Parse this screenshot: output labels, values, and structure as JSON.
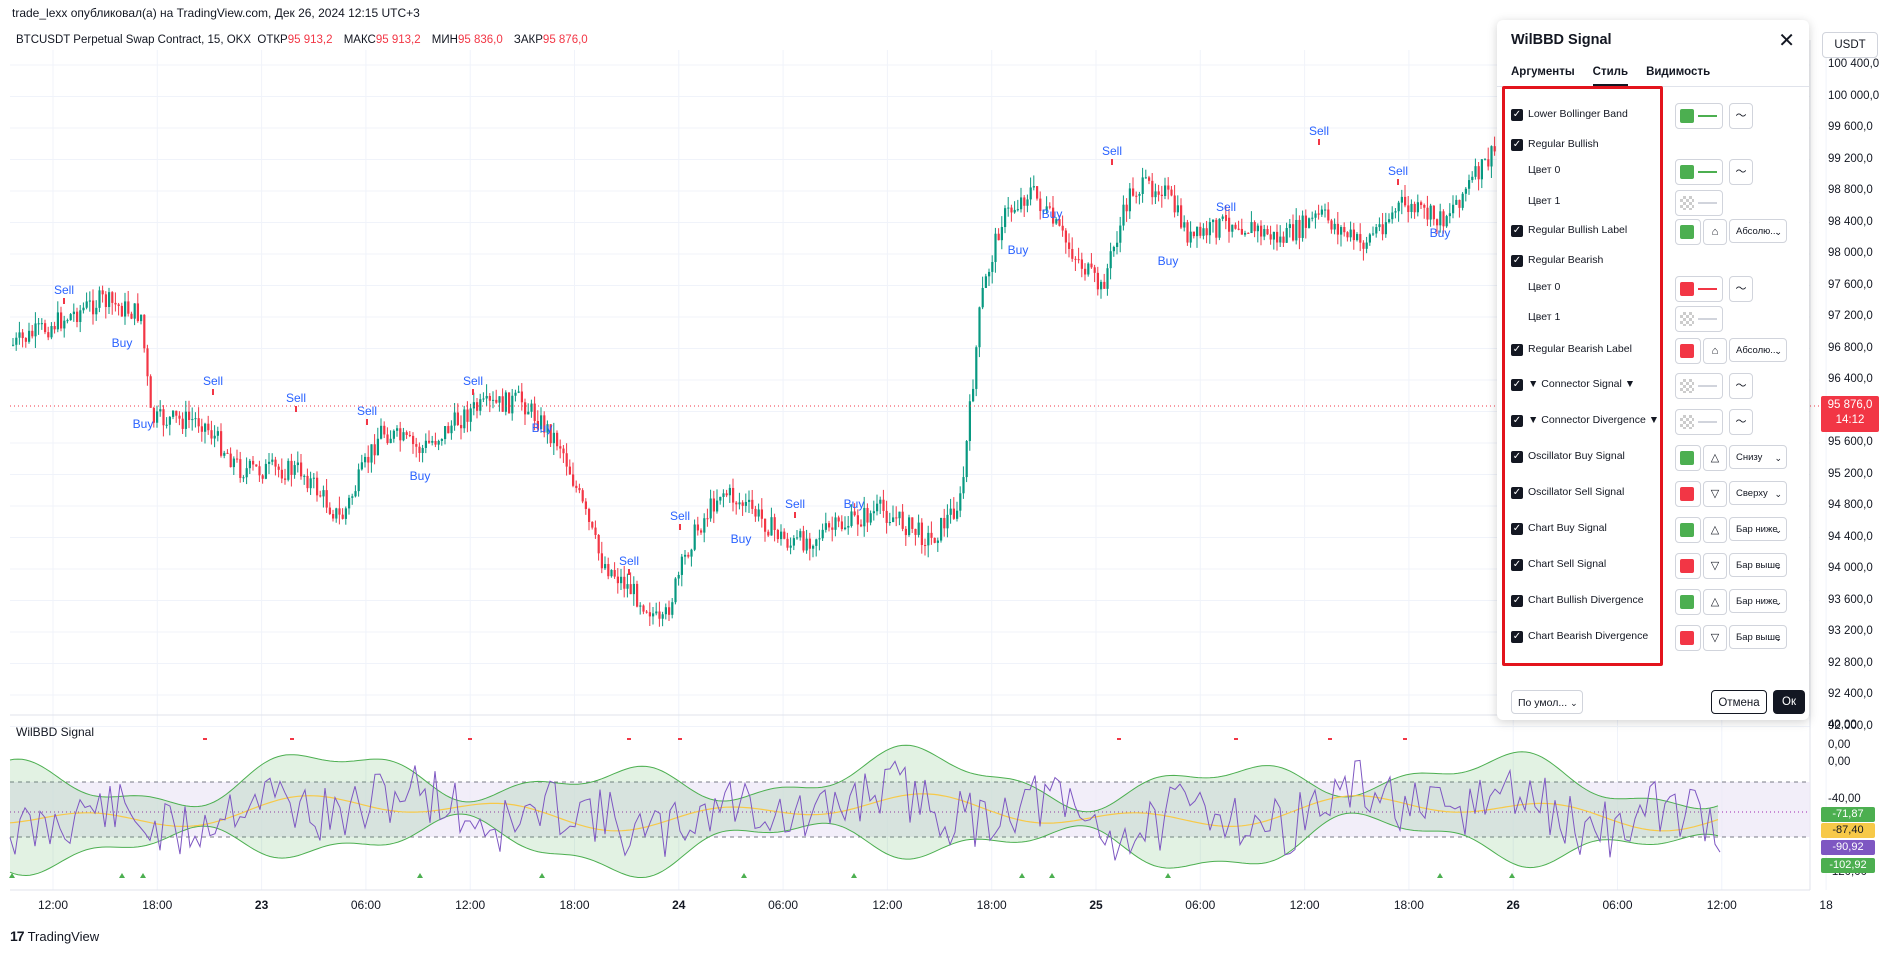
{
  "header": {
    "published_line": "trade_lexx опубликовал(а) на TradingView.com, Дек 26, 2024 12:15 UTC+3"
  },
  "legend": {
    "symbol": "BTCUSDT Perpetual Swap Contract, 15, OKX",
    "open_label": "ОТКР",
    "open_value": "95 913,2",
    "high_label": "МАКС",
    "high_value": "95 913,2",
    "low_label": "МИН",
    "low_value": "95 836,0",
    "close_label": "ЗАКР",
    "close_value": "95 876,0"
  },
  "colors": {
    "up": "#089981",
    "down": "#f23645",
    "signal_text": "#2962ff",
    "green": "#4caf50",
    "red": "#f23645",
    "purple": "#7e57c2",
    "yellow": "#f7c948"
  },
  "price_axis": {
    "currency": "USDT",
    "labels": [
      "100 400,0",
      "100 000,0",
      "99 600,0",
      "99 200,0",
      "98 800,0",
      "98 400,0",
      "98 000,0",
      "97 600,0",
      "97 200,0",
      "96 800,0",
      "96 400,0",
      "96 000,0",
      "95 600,0",
      "95 200,0",
      "94 800,0",
      "94 400,0",
      "94 000,0",
      "93 600,0",
      "93 200,0",
      "92 800,0",
      "92 400,0",
      "92 000,0"
    ],
    "current_price": "95 876,0",
    "countdown": "14:12"
  },
  "osc_axis": {
    "labels": [
      "40,00",
      "0,00",
      "0,00",
      "-40,00",
      "-120,00"
    ],
    "tags": [
      {
        "value": "-71,87",
        "color": "#4caf50"
      },
      {
        "value": "-87,40",
        "color": "#f7c948"
      },
      {
        "value": "-90,92",
        "color": "#7e57c2"
      },
      {
        "value": "-102,92",
        "color": "#4caf50"
      }
    ]
  },
  "time_axis": {
    "labels": [
      "12:00",
      "18:00",
      "23",
      "06:00",
      "12:00",
      "18:00",
      "24",
      "06:00",
      "12:00",
      "18:00",
      "25",
      "06:00",
      "12:00",
      "18:00",
      "26",
      "06:00",
      "12:00",
      "18"
    ]
  },
  "signals": {
    "sell_label": "Sell",
    "buy_label": "Buy",
    "sells": [
      [
        64,
        294
      ],
      [
        213,
        385
      ],
      [
        296,
        402
      ],
      [
        367,
        415
      ],
      [
        473,
        385
      ],
      [
        680,
        520
      ],
      [
        629,
        565
      ],
      [
        795,
        508
      ],
      [
        1112,
        155
      ],
      [
        1226,
        211
      ],
      [
        1319,
        135
      ],
      [
        1398,
        175
      ]
    ],
    "buys": [
      [
        122,
        347
      ],
      [
        143,
        428
      ],
      [
        420,
        480
      ],
      [
        542,
        432
      ],
      [
        741,
        543
      ],
      [
        854,
        508
      ],
      [
        1018,
        254
      ],
      [
        1052,
        218
      ],
      [
        1168,
        265
      ],
      [
        1440,
        237
      ]
    ]
  },
  "oscillator": {
    "title": "WilBBD Signal"
  },
  "dialog": {
    "title": "WilBBD Signal",
    "tabs": [
      "Аргументы",
      "Стиль",
      "Видимость"
    ],
    "rows": [
      {
        "label": "Lower Bollinger Band",
        "checked": true,
        "color": "#4caf50",
        "line": true,
        "btn": "wave"
      },
      {
        "label": "Regular Bullish",
        "checked": true
      },
      {
        "label": "Цвет 0",
        "sub": true,
        "color": "#4caf50",
        "line": true,
        "btn": "wave"
      },
      {
        "label": "Цвет 1",
        "sub": true,
        "checker": true,
        "line": true
      },
      {
        "label": "Regular Bullish Label",
        "checked": true,
        "color": "#4caf50",
        "sq": true,
        "btn": "label",
        "select": "Абсолю..."
      },
      {
        "label": "Regular Bearish",
        "checked": true
      },
      {
        "label": "Цвет 0",
        "sub": true,
        "color": "#f23645",
        "line": true,
        "btn": "wave"
      },
      {
        "label": "Цвет 1",
        "sub": true,
        "checker": true,
        "line": true
      },
      {
        "label": "Regular Bearish Label",
        "checked": true,
        "color": "#f23645",
        "sq": true,
        "btn": "label",
        "select": "Абсолю..."
      },
      {
        "label": "▼ Connector Signal ▼",
        "checked": true,
        "checker": true,
        "line": true,
        "btn": "wave"
      },
      {
        "label": "▼ Connector Divergence ▼",
        "checked": true,
        "checker": true,
        "line": true,
        "btn": "wave"
      },
      {
        "label": "Oscillator Buy Signal",
        "checked": true,
        "color": "#4caf50",
        "sq": true,
        "btn": "up",
        "select": "Снизу"
      },
      {
        "label": "Oscillator Sell Signal",
        "checked": true,
        "color": "#f23645",
        "sq": true,
        "btn": "down",
        "select": "Сверху"
      },
      {
        "label": "Chart Buy Signal",
        "checked": true,
        "color": "#4caf50",
        "sq": true,
        "btn": "up",
        "select": "Бар ниже"
      },
      {
        "label": "Chart Sell Signal",
        "checked": true,
        "color": "#f23645",
        "sq": true,
        "btn": "down",
        "select": "Бар выше"
      },
      {
        "label": "Chart Bullish Divergence",
        "checked": true,
        "color": "#4caf50",
        "sq": true,
        "btn": "up",
        "select": "Бар ниже"
      },
      {
        "label": "Chart Bearish Divergence",
        "checked": true,
        "color": "#f23645",
        "sq": true,
        "btn": "down",
        "select": "Бар выше"
      }
    ],
    "preset_label": "По умол...",
    "cancel_label": "Отмена",
    "ok_label": "Ок"
  },
  "footer": {
    "brand": "TradingView",
    "logo": "17"
  }
}
